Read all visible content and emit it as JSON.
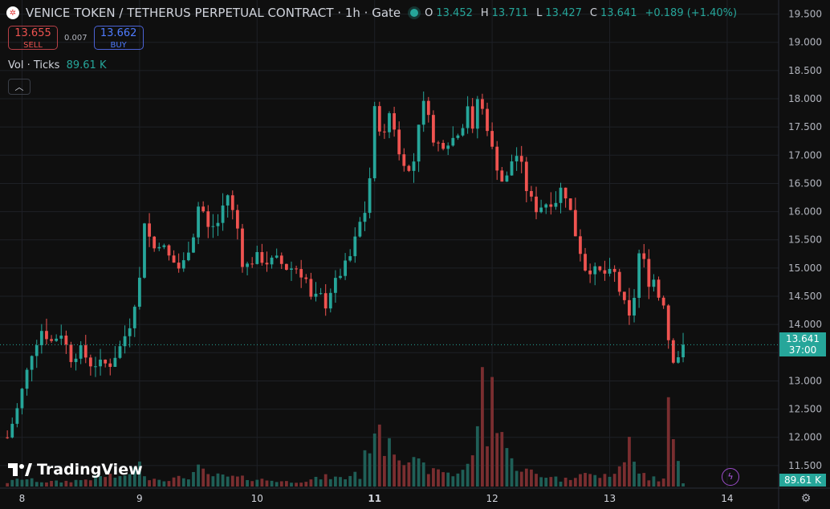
{
  "header": {
    "logo_glyph": "✲",
    "title": "VENICE TOKEN / TETHERUS PERPETUAL CONTRACT · 1h · Gate",
    "ohlc": [
      {
        "key": "O",
        "value": "13.452"
      },
      {
        "key": "H",
        "value": "13.711"
      },
      {
        "key": "L",
        "value": "13.427"
      },
      {
        "key": "C",
        "value": "13.641"
      },
      {
        "key": "",
        "value": "+0.189 (+1.40%)"
      }
    ]
  },
  "trade": {
    "sell_price": "13.655",
    "sell_label": "SELL",
    "spread": "0.007",
    "buy_price": "13.662",
    "buy_label": "BUY"
  },
  "volume_legend": {
    "label": "Vol · Ticks",
    "value": "89.61 K"
  },
  "collapse_glyph": "︿",
  "branding": {
    "text": "TradingView"
  },
  "last_price": {
    "price": "13.641",
    "countdown": "37:00"
  },
  "volume_tag": "89.61 K",
  "icons": {
    "bolt": "ϟ",
    "settings": "⚙"
  },
  "colors": {
    "up": "#26a69a",
    "down": "#ef5350",
    "up_vol": "#1f5f57",
    "down_vol": "#7a2e30",
    "grid": "#1e2026",
    "background": "#0f0f0f"
  },
  "chart_data": {
    "type": "candlestick",
    "y_ticks": [
      "11.500",
      "12.000",
      "12.500",
      "13.000",
      "13.500",
      "14.000",
      "14.500",
      "15.000",
      "15.500",
      "16.000",
      "16.500",
      "17.000",
      "17.500",
      "18.000",
      "18.500",
      "19.000",
      "19.500"
    ],
    "x_ticks": [
      {
        "label": "8",
        "hour": 0,
        "bold": false
      },
      {
        "label": "9",
        "hour": 24,
        "bold": false
      },
      {
        "label": "10",
        "hour": 48,
        "bold": false
      },
      {
        "label": "11",
        "hour": 72,
        "bold": true
      },
      {
        "label": "12",
        "hour": 96,
        "bold": false
      },
      {
        "label": "13",
        "hour": 120,
        "bold": false
      },
      {
        "label": "14",
        "hour": 144,
        "bold": false
      }
    ],
    "y_range": [
      11.1,
      19.75
    ],
    "hour_range": [
      -4.5,
      154.5
    ],
    "close_path": [
      [
        -3,
        12.0
      ],
      [
        -1,
        12.5
      ],
      [
        2,
        13.5
      ],
      [
        4,
        13.9
      ],
      [
        6,
        13.7
      ],
      [
        8,
        13.85
      ],
      [
        10,
        13.4
      ],
      [
        12,
        13.55
      ],
      [
        14,
        13.3
      ],
      [
        16,
        13.3
      ],
      [
        18,
        13.3
      ],
      [
        20,
        13.6
      ],
      [
        22,
        14.0
      ],
      [
        24,
        14.8
      ],
      [
        25,
        15.85
      ],
      [
        26,
        15.55
      ],
      [
        27,
        15.35
      ],
      [
        28,
        15.45
      ],
      [
        29,
        15.35
      ],
      [
        30,
        15.2
      ],
      [
        32,
        15.0
      ],
      [
        33,
        15.1
      ],
      [
        35,
        15.6
      ],
      [
        36,
        16.1
      ],
      [
        37,
        16.0
      ],
      [
        38,
        15.7
      ],
      [
        40,
        15.8
      ],
      [
        41,
        16.1
      ],
      [
        42,
        16.3
      ],
      [
        43,
        16.0
      ],
      [
        44,
        15.7
      ],
      [
        45,
        15.1
      ],
      [
        46,
        15.05
      ],
      [
        48,
        15.2
      ],
      [
        50,
        15.1
      ],
      [
        52,
        15.15
      ],
      [
        54,
        15.0
      ],
      [
        56,
        15.0
      ],
      [
        58,
        14.8
      ],
      [
        59,
        14.45
      ],
      [
        61,
        14.5
      ],
      [
        62,
        14.35
      ],
      [
        63,
        14.6
      ],
      [
        65,
        14.9
      ],
      [
        67,
        15.2
      ],
      [
        69,
        15.8
      ],
      [
        70,
        16.0
      ],
      [
        71,
        16.6
      ],
      [
        72,
        17.8
      ],
      [
        73,
        17.5
      ],
      [
        74,
        17.35
      ],
      [
        75,
        17.75
      ],
      [
        76,
        17.5
      ],
      [
        77,
        17.0
      ],
      [
        78,
        16.9
      ],
      [
        79,
        16.7
      ],
      [
        80,
        16.9
      ],
      [
        81,
        17.6
      ],
      [
        82,
        17.9
      ],
      [
        83,
        17.8
      ],
      [
        84,
        17.2
      ],
      [
        86,
        17.2
      ],
      [
        88,
        17.3
      ],
      [
        90,
        17.55
      ],
      [
        91,
        17.9
      ],
      [
        92,
        17.4
      ],
      [
        93,
        18.0
      ],
      [
        94,
        17.8
      ],
      [
        95,
        17.5
      ],
      [
        96,
        17.1
      ],
      [
        97,
        16.8
      ],
      [
        98,
        16.55
      ],
      [
        99,
        16.6
      ],
      [
        100,
        16.9
      ],
      [
        101,
        17.0
      ],
      [
        102,
        16.8
      ],
      [
        103,
        16.4
      ],
      [
        104,
        16.2
      ],
      [
        105,
        16.05
      ],
      [
        107,
        16.15
      ],
      [
        109,
        16.2
      ],
      [
        110,
        16.4
      ],
      [
        111,
        16.3
      ],
      [
        112,
        16.0
      ],
      [
        113,
        15.6
      ],
      [
        114,
        15.3
      ],
      [
        115,
        15.0
      ],
      [
        117,
        14.95
      ],
      [
        119,
        14.9
      ],
      [
        121,
        14.9
      ],
      [
        122,
        14.6
      ],
      [
        123,
        14.35
      ],
      [
        124,
        14.1
      ],
      [
        125,
        14.5
      ],
      [
        126,
        15.25
      ],
      [
        127,
        15.1
      ],
      [
        128,
        14.75
      ],
      [
        129,
        14.8
      ],
      [
        130,
        14.5
      ],
      [
        131,
        14.4
      ],
      [
        132,
        13.75
      ],
      [
        133,
        13.4
      ],
      [
        134,
        13.45
      ],
      [
        135,
        13.641
      ]
    ],
    "volume_path": [
      [
        -3,
        5
      ],
      [
        0,
        10
      ],
      [
        4,
        6
      ],
      [
        8,
        6
      ],
      [
        12,
        8
      ],
      [
        14,
        10
      ],
      [
        16,
        12
      ],
      [
        18,
        14
      ],
      [
        20,
        10
      ],
      [
        24,
        26
      ],
      [
        26,
        10
      ],
      [
        30,
        9
      ],
      [
        34,
        12
      ],
      [
        36,
        22
      ],
      [
        38,
        14
      ],
      [
        42,
        12
      ],
      [
        46,
        10
      ],
      [
        50,
        8
      ],
      [
        54,
        6
      ],
      [
        58,
        7
      ],
      [
        62,
        12
      ],
      [
        66,
        10
      ],
      [
        68,
        18
      ],
      [
        69,
        12
      ],
      [
        70,
        36
      ],
      [
        71,
        55
      ],
      [
        72,
        78
      ],
      [
        73,
        60
      ],
      [
        74,
        52
      ],
      [
        75,
        68
      ],
      [
        76,
        48
      ],
      [
        78,
        38
      ],
      [
        80,
        30
      ],
      [
        82,
        24
      ],
      [
        84,
        18
      ],
      [
        86,
        20
      ],
      [
        88,
        14
      ],
      [
        90,
        22
      ],
      [
        92,
        34
      ],
      [
        93,
        88
      ],
      [
        94,
        122
      ],
      [
        95,
        60
      ],
      [
        96,
        120
      ],
      [
        97,
        90
      ],
      [
        98,
        70
      ],
      [
        99,
        48
      ],
      [
        100,
        30
      ],
      [
        102,
        22
      ],
      [
        104,
        18
      ],
      [
        106,
        12
      ],
      [
        108,
        14
      ],
      [
        110,
        8
      ],
      [
        112,
        10
      ],
      [
        114,
        20
      ],
      [
        116,
        14
      ],
      [
        118,
        12
      ],
      [
        120,
        15
      ],
      [
        122,
        20
      ],
      [
        123,
        34
      ],
      [
        124,
        75
      ],
      [
        125,
        26
      ],
      [
        126,
        14
      ],
      [
        127,
        16
      ],
      [
        128,
        10
      ],
      [
        129,
        16
      ],
      [
        130,
        8
      ],
      [
        131,
        10
      ],
      [
        132,
        138
      ],
      [
        133,
        56
      ],
      [
        134,
        30
      ],
      [
        135,
        4
      ]
    ]
  }
}
